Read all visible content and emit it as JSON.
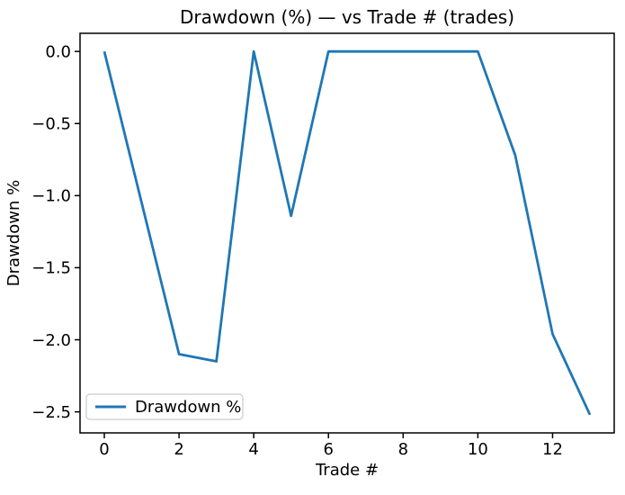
{
  "chart_data": {
    "type": "line",
    "title": "Drawdown (%) — vs Trade # (trades)",
    "xlabel": "Trade #",
    "ylabel": "Drawdown %",
    "x": [
      0,
      1,
      2,
      3,
      4,
      5,
      6,
      7,
      8,
      9,
      10,
      11,
      12,
      13
    ],
    "series": [
      {
        "name": "Drawdown %",
        "color": "#1f77b4",
        "values": [
          0.0,
          -1.05,
          -2.1,
          -2.15,
          0.0,
          -1.14,
          0.0,
          0.0,
          0.0,
          0.0,
          0.0,
          -0.72,
          -1.96,
          -2.52
        ]
      }
    ],
    "xticks": [
      0,
      2,
      4,
      6,
      8,
      10,
      12
    ],
    "yticks": [
      0.0,
      -0.5,
      -1.0,
      -1.5,
      -2.0,
      -2.5
    ],
    "xlim": [
      -0.65,
      13.65
    ],
    "ylim": [
      -2.646,
      0.126
    ],
    "grid": false,
    "legend": {
      "position": "lower-left",
      "label": "Drawdown %"
    },
    "line_color": "#1f77b4",
    "background_color": "#ffffff"
  }
}
